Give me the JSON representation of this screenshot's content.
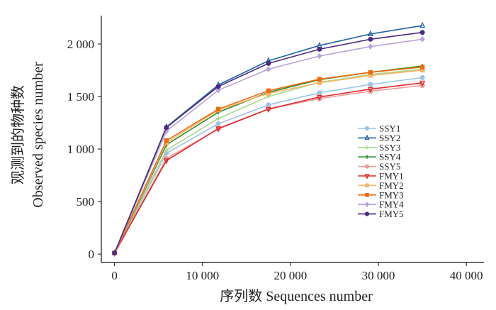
{
  "chart_data": {
    "type": "line",
    "xlabel": "序列数  Sequences number",
    "ylabel_cn": "观测到的物种数",
    "ylabel_en": "Observed species number",
    "xlim": [
      -1500,
      42000
    ],
    "ylim": [
      -80,
      2270
    ],
    "x_ticks": [
      0,
      10000,
      20000,
      30000,
      40000
    ],
    "x_tick_labels": [
      "0",
      "10 000",
      "20 000",
      "30 000",
      "40 000"
    ],
    "y_ticks": [
      0,
      500,
      1000,
      1500,
      2000
    ],
    "y_tick_labels": [
      "0",
      "500",
      "1 000",
      "1 500",
      "2 000"
    ],
    "legend_position": "right-middle",
    "x": [
      0,
      5900,
      11800,
      17500,
      23300,
      29100,
      35000
    ],
    "series": [
      {
        "name": "SSY1",
        "color": "#9ec3e0",
        "marker": "circle",
        "values": [
          10,
          960,
          1240,
          1420,
          1535,
          1615,
          1680
        ]
      },
      {
        "name": "SSY2",
        "color": "#2563a8",
        "marker": "triangle",
        "values": [
          10,
          1210,
          1610,
          1840,
          1985,
          2095,
          2175
        ]
      },
      {
        "name": "SSY3",
        "color": "#a8d88a",
        "marker": "cross",
        "values": [
          10,
          990,
          1290,
          1500,
          1635,
          1710,
          1760
        ]
      },
      {
        "name": "SSY4",
        "color": "#2e8b2e",
        "marker": "cross",
        "values": [
          10,
          1040,
          1350,
          1540,
          1660,
          1730,
          1790
        ]
      },
      {
        "name": "SSY5",
        "color": "#f09a9a",
        "marker": "circle",
        "values": [
          10,
          910,
          1190,
          1380,
          1480,
          1550,
          1605
        ]
      },
      {
        "name": "FMY1",
        "color": "#e0262a",
        "marker": "triangle-down",
        "values": [
          10,
          890,
          1195,
          1380,
          1495,
          1570,
          1630
        ]
      },
      {
        "name": "FMY2",
        "color": "#f7b56a",
        "marker": "square",
        "values": [
          10,
          1060,
          1370,
          1530,
          1630,
          1700,
          1750
        ]
      },
      {
        "name": "FMY3",
        "color": "#ef6a0e",
        "marker": "square",
        "values": [
          10,
          1080,
          1380,
          1555,
          1665,
          1730,
          1780
        ]
      },
      {
        "name": "FMY4",
        "color": "#b9a3d8",
        "marker": "diamond",
        "values": [
          10,
          1170,
          1560,
          1760,
          1885,
          1975,
          2045
        ]
      },
      {
        "name": "FMY5",
        "color": "#4a2a82",
        "marker": "circle",
        "values": [
          10,
          1205,
          1595,
          1815,
          1950,
          2045,
          2110
        ]
      }
    ]
  }
}
